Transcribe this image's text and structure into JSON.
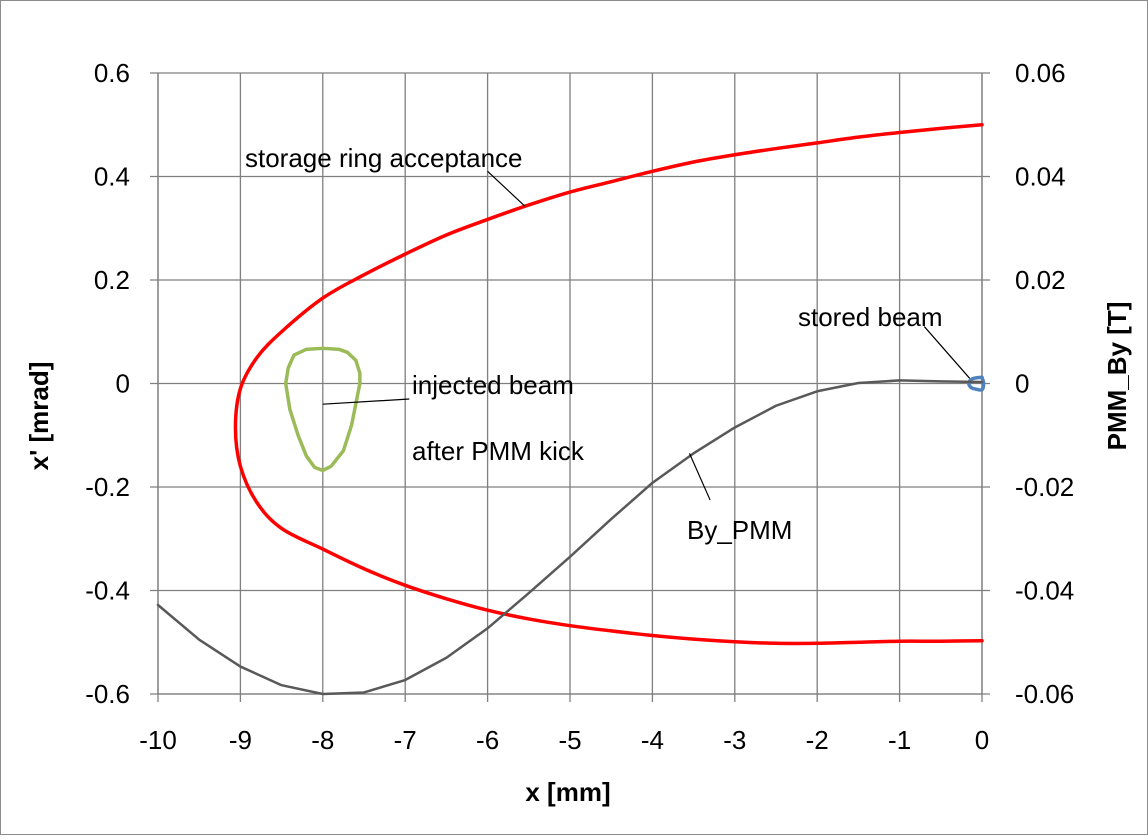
{
  "chart_data": {
    "type": "scatter",
    "xlabel": "x [mm]",
    "ylabel": "x' [mrad]",
    "y2label": "PMM_By [T]",
    "xlim": [
      -10,
      0
    ],
    "ylim": [
      -0.6,
      0.6
    ],
    "y2lim": [
      -0.06,
      0.06
    ],
    "grid": true,
    "x_ticks": [
      "-10",
      "-9",
      "-8",
      "-7",
      "-6",
      "-5",
      "-4",
      "-3",
      "-2",
      "-1",
      "0"
    ],
    "y_ticks": [
      "-0.6",
      "-0.4",
      "-0.2",
      "0",
      "0.2",
      "0.4",
      "0.6"
    ],
    "y2_ticks": [
      "-0.06",
      "-0.04",
      "-0.02",
      "0",
      "0.02",
      "0.04",
      "0.06"
    ],
    "colors": {
      "acceptance": "#ff0000",
      "injected": "#9bbb59",
      "stored": "#4f81bd",
      "by_pmm": "#595959",
      "grid": "#7f7f7f"
    },
    "series": [
      {
        "axis": "y",
        "points": [
          [
            0,
            0.5
          ],
          [
            -0.5,
            0.493
          ],
          [
            -1,
            0.485
          ],
          [
            -1.5,
            0.476
          ],
          [
            -2,
            0.465
          ],
          [
            -2.5,
            0.454
          ],
          [
            -3,
            0.442
          ],
          [
            -3.5,
            0.428
          ],
          [
            -4,
            0.41
          ],
          [
            -4.5,
            0.39
          ],
          [
            -5,
            0.37
          ],
          [
            -5.5,
            0.345
          ],
          [
            -6,
            0.317
          ],
          [
            -6.5,
            0.287
          ],
          [
            -7,
            0.25
          ],
          [
            -7.5,
            0.21
          ],
          [
            -8,
            0.165
          ],
          [
            -8.5,
            0.1
          ],
          [
            -8.8,
            0.05
          ],
          [
            -9.0,
            -0.01
          ],
          [
            -9.06,
            -0.085
          ],
          [
            -9.0,
            -0.16
          ],
          [
            -8.8,
            -0.23
          ],
          [
            -8.5,
            -0.28
          ],
          [
            -8,
            -0.32
          ],
          [
            -7.5,
            -0.358
          ],
          [
            -7,
            -0.39
          ],
          [
            -6.5,
            -0.416
          ],
          [
            -6,
            -0.438
          ],
          [
            -5.5,
            -0.455
          ],
          [
            -5,
            -0.468
          ],
          [
            -4.5,
            -0.478
          ],
          [
            -4,
            -0.487
          ],
          [
            -3.5,
            -0.494
          ],
          [
            -3,
            -0.499
          ],
          [
            -2.5,
            -0.502
          ],
          [
            -2,
            -0.502
          ],
          [
            -1.5,
            -0.5
          ],
          [
            -1,
            -0.498
          ],
          [
            -0.5,
            -0.498
          ],
          [
            0,
            -0.497
          ]
        ]
      },
      {
        "axis": "y",
        "points": [
          [
            -8.0,
            0.068
          ],
          [
            -7.8,
            0.066
          ],
          [
            -7.7,
            0.06
          ],
          [
            -7.6,
            0.045
          ],
          [
            -7.55,
            0.02
          ],
          [
            -7.55,
            0.0
          ],
          [
            -7.6,
            -0.04
          ],
          [
            -7.65,
            -0.08
          ],
          [
            -7.75,
            -0.13
          ],
          [
            -7.9,
            -0.16
          ],
          [
            -8.0,
            -0.168
          ],
          [
            -8.1,
            -0.162
          ],
          [
            -8.2,
            -0.14
          ],
          [
            -8.3,
            -0.1
          ],
          [
            -8.4,
            -0.05
          ],
          [
            -8.45,
            0.0
          ],
          [
            -8.42,
            0.03
          ],
          [
            -8.35,
            0.055
          ],
          [
            -8.2,
            0.066
          ],
          [
            -8.0,
            0.068
          ]
        ]
      },
      {
        "axis": "y",
        "points": [
          [
            0,
            0.012
          ],
          [
            -0.07,
            0.011
          ],
          [
            -0.13,
            0.008
          ],
          [
            -0.16,
            0.0
          ],
          [
            -0.13,
            -0.008
          ],
          [
            -0.07,
            -0.011
          ],
          [
            0,
            -0.012
          ],
          [
            0.02,
            0.0
          ],
          [
            0,
            0.012
          ]
        ]
      },
      {
        "name": "By_PMM",
        "axis": "y2",
        "points": [
          [
            -10,
            -0.0428
          ],
          [
            -9.5,
            -0.0495
          ],
          [
            -9,
            -0.0547
          ],
          [
            -8.5,
            -0.0583
          ],
          [
            -8,
            -0.06
          ],
          [
            -7.5,
            -0.0597
          ],
          [
            -7,
            -0.0573
          ],
          [
            -6.5,
            -0.053
          ],
          [
            -6,
            -0.0473
          ],
          [
            -5.5,
            -0.0405
          ],
          [
            -5,
            -0.0335
          ],
          [
            -4.5,
            -0.0262
          ],
          [
            -4,
            -0.0192
          ],
          [
            -3.5,
            -0.0135
          ],
          [
            -3,
            -0.0085
          ],
          [
            -2.5,
            -0.0043
          ],
          [
            -2,
            -0.0015
          ],
          [
            -1.5,
            0.0001
          ],
          [
            -1,
            0.0006
          ],
          [
            -0.5,
            0.0004
          ],
          [
            0,
            0.0003
          ]
        ]
      }
    ],
    "annotations": [
      {
        "text": "storage ring acceptance"
      },
      {
        "text": "stored beam"
      },
      {
        "text_lines": [
          "injected beam",
          "after PMM kick"
        ]
      },
      {
        "text": "By_PMM"
      }
    ]
  }
}
